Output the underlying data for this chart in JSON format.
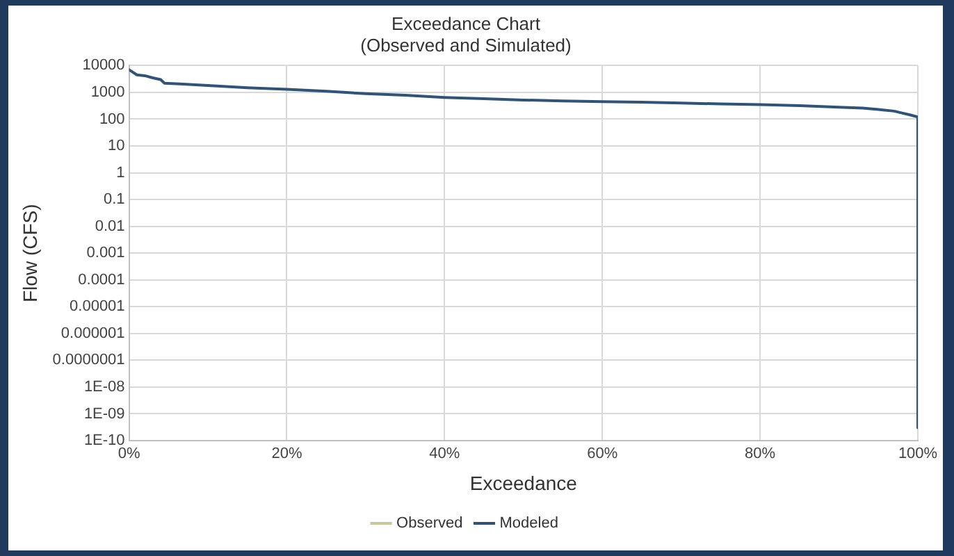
{
  "chart_data": {
    "type": "line",
    "title": "Exceedance Chart\n(Observed and Simulated)",
    "xlabel": "Exceedance",
    "ylabel": "Flow (CFS)",
    "xlim": [
      0,
      100
    ],
    "xticks": [
      {
        "value": 0,
        "label": "0%"
      },
      {
        "value": 20,
        "label": "20%"
      },
      {
        "value": 40,
        "label": "40%"
      },
      {
        "value": 60,
        "label": "60%"
      },
      {
        "value": 80,
        "label": "80%"
      },
      {
        "value": 100,
        "label": "100%"
      }
    ],
    "log": "y",
    "ylim": [
      1e-10,
      10000
    ],
    "yticks": [
      10000,
      1000,
      100,
      10,
      1,
      0.1,
      0.01,
      0.001,
      0.0001,
      {
        "value": 1e-05,
        "label": "0.00001"
      },
      {
        "value": 1e-06,
        "label": "0.000001"
      },
      {
        "value": 1e-07,
        "label": "0.0000001"
      },
      {
        "value": 1e-08,
        "label": "1E-08"
      },
      {
        "value": 1e-09,
        "label": "1E-09"
      },
      {
        "value": 1e-10,
        "label": "1E-10"
      }
    ],
    "grid": true,
    "legend": "bottom",
    "marker": "none",
    "line_style": "solid",
    "series": [
      {
        "name": "Observed",
        "color": "#c8c89a"
      },
      {
        "name": "Modeled",
        "color": "#2f5478",
        "x": [
          0,
          1,
          2,
          3,
          4,
          4.5,
          6,
          10,
          15,
          20,
          25,
          30,
          35,
          40,
          45,
          50,
          55,
          60,
          65,
          70,
          75,
          80,
          85,
          90,
          93,
          95,
          97,
          98,
          99,
          100,
          100
        ],
        "values": [
          7000,
          4500,
          4200,
          3500,
          3000,
          2200,
          2100,
          1800,
          1500,
          1300,
          1100,
          900,
          780,
          650,
          580,
          520,
          480,
          450,
          430,
          400,
          370,
          350,
          320,
          280,
          260,
          230,
          200,
          170,
          145,
          120,
          3e-10
        ]
      }
    ]
  }
}
